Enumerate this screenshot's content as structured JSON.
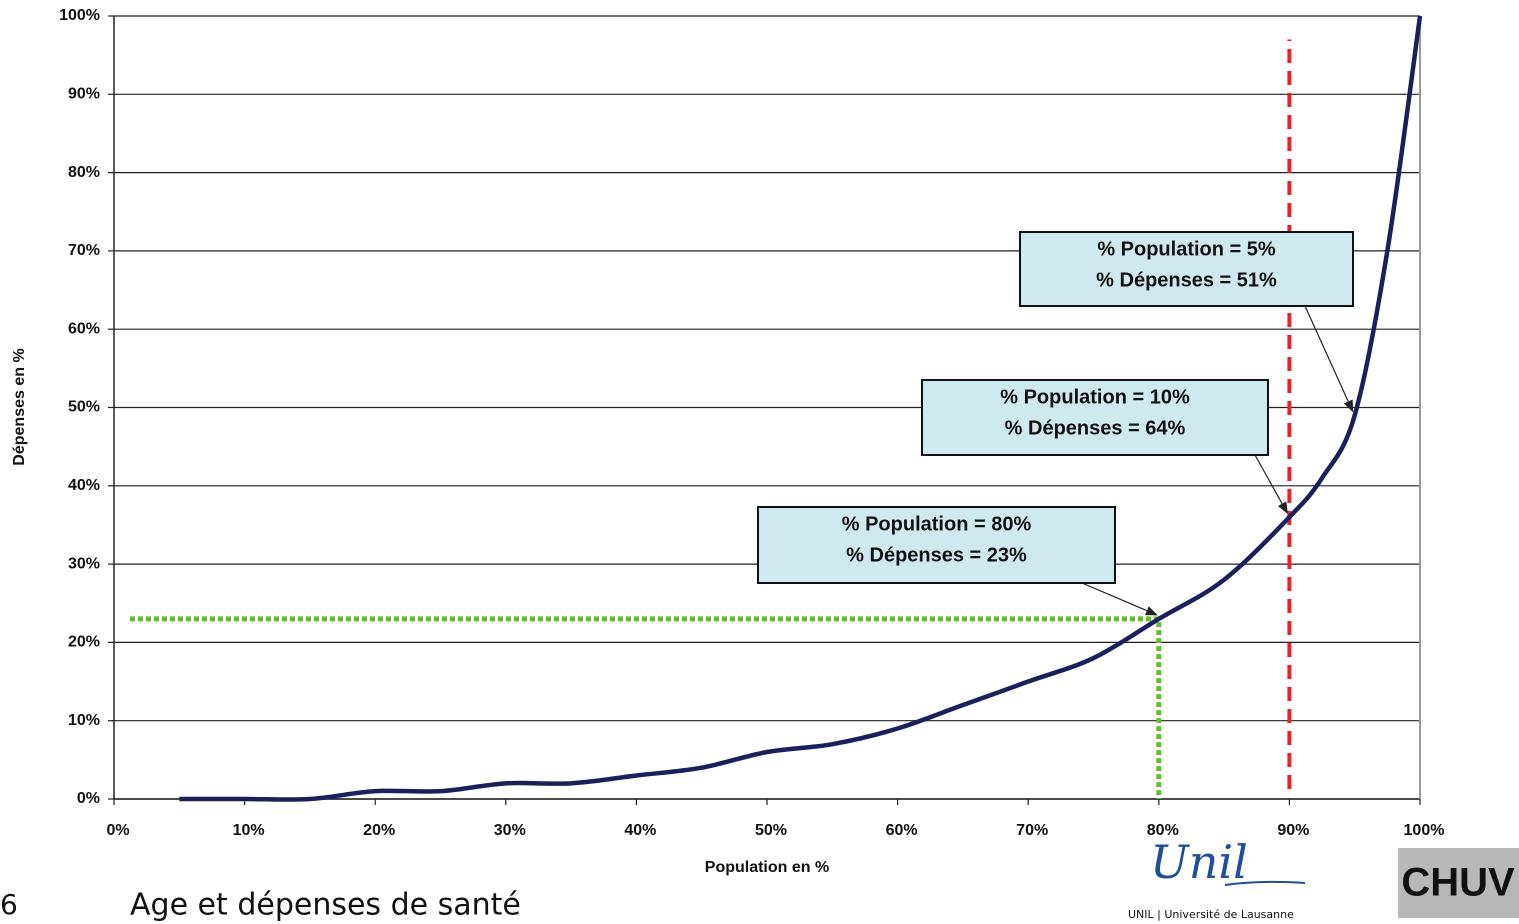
{
  "chart_data": {
    "type": "line",
    "x_label": "Population en %",
    "y_label": "Dépenses en %",
    "x": [
      5,
      10,
      15,
      20,
      25,
      30,
      35,
      40,
      45,
      50,
      55,
      60,
      65,
      70,
      75,
      80,
      85,
      90,
      92.5,
      95,
      97.5,
      100
    ],
    "series": [
      {
        "color": "#1b1f5c",
        "values": [
          0,
          0,
          0,
          1,
          1,
          2,
          2,
          3,
          4,
          6,
          7,
          9,
          12,
          15,
          18,
          23,
          28,
          36,
          41,
          49,
          70,
          100
        ]
      }
    ],
    "xlim": [
      0,
      100
    ],
    "ylim": [
      0,
      100
    ],
    "xticks": [
      {
        "value": 0,
        "label": "0%"
      },
      {
        "value": 10,
        "label": "10%"
      },
      {
        "value": 20,
        "label": "20%"
      },
      {
        "value": 30,
        "label": "30%"
      },
      {
        "value": 40,
        "label": "40%"
      },
      {
        "value": 50,
        "label": "50%"
      },
      {
        "value": 60,
        "label": "60%"
      },
      {
        "value": 70,
        "label": "70%"
      },
      {
        "value": 80,
        "label": "80%"
      },
      {
        "value": 90,
        "label": "90%"
      },
      {
        "value": 100,
        "label": "100%"
      }
    ],
    "yticks": [
      {
        "value": 0,
        "label": "0%"
      },
      {
        "value": 10,
        "label": "10%"
      },
      {
        "value": 20,
        "label": "20%"
      },
      {
        "value": 30,
        "label": "30%"
      },
      {
        "value": 40,
        "label": "40%"
      },
      {
        "value": 50,
        "label": "50%"
      },
      {
        "value": 60,
        "label": "60%"
      },
      {
        "value": 70,
        "label": "70%"
      },
      {
        "value": 80,
        "label": "80%"
      },
      {
        "value": 90,
        "label": "90%"
      },
      {
        "value": 100,
        "label": "100%"
      }
    ],
    "grid": true,
    "marker_point": {
      "x": 80,
      "y": 23,
      "color": "#5fbf2f"
    },
    "vline": {
      "x": 90,
      "ymax": 97,
      "color": "#e8222a"
    },
    "annotations": [
      {
        "lines": [
          "% Population = 5%",
          "% Dépenses = 51%"
        ],
        "x": 95,
        "y": 49
      },
      {
        "lines": [
          "% Population = 10%",
          "% Dépenses = 64%"
        ],
        "x": 90,
        "y": 36
      },
      {
        "lines": [
          "% Population = 80%",
          "% Dépenses = 23%"
        ],
        "x": 80,
        "y": 23
      }
    ]
  },
  "footer": {
    "page": "6",
    "title": "Age et dépenses de santé",
    "logo_script": "Unil",
    "logo_caption": "UNIL | Université de Lausanne",
    "logo2": "CHUV"
  }
}
